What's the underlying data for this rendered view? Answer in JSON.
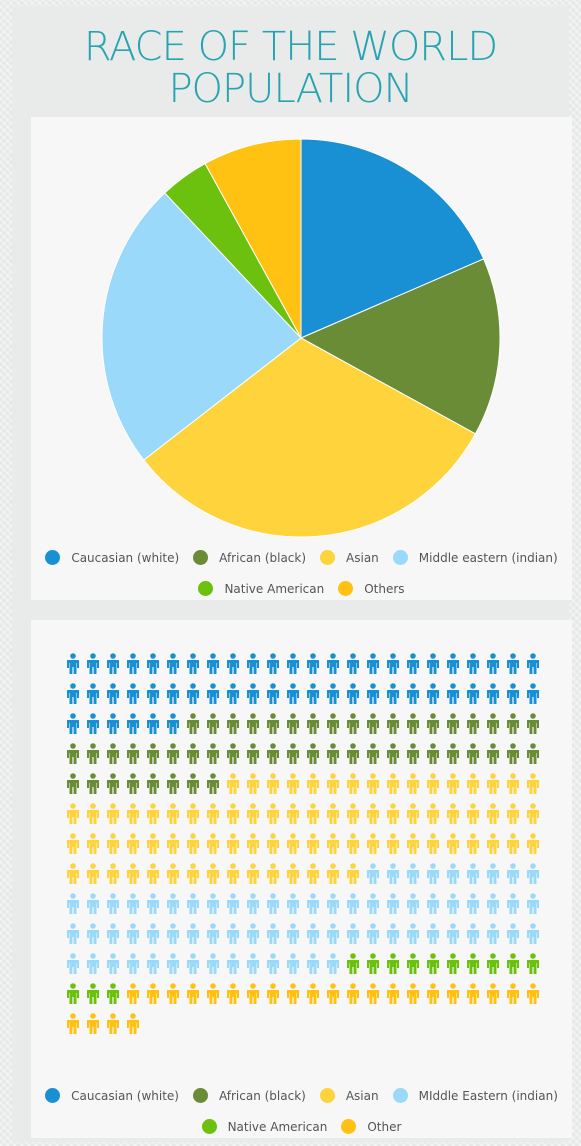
{
  "title": {
    "line1": "RACE OF THE WORLD",
    "line2": "POPULATION"
  },
  "colors": {
    "caucasian": "#1a90d4",
    "african": "#6a8c36",
    "asian": "#fed33c",
    "middle_eastern": "#9bd9fb",
    "native_american": "#6cc10e",
    "others": "#ffc212"
  },
  "chart_data": [
    {
      "type": "pie",
      "slices": [
        {
          "label": "Caucasian (white)",
          "value": 18.5,
          "color": "#1a90d4"
        },
        {
          "label": "African (black)",
          "value": 14.5,
          "color": "#6a8c36"
        },
        {
          "label": "Asian",
          "value": 31.5,
          "color": "#fed33c"
        },
        {
          "label": "Middle eastern (indian)",
          "value": 23.5,
          "color": "#9bd9fb"
        },
        {
          "label": "Native American",
          "value": 4,
          "color": "#6cc10e"
        },
        {
          "label": "Others",
          "value": 8,
          "color": "#ffc212"
        }
      ],
      "legend": [
        [
          "Caucasian (white)",
          "African (black)",
          "Asian",
          "Middle eastern (indian)"
        ],
        [
          "Native American",
          "Others"
        ]
      ]
    },
    {
      "type": "pictogram",
      "rows": 13,
      "columns": 24,
      "groups": [
        {
          "label": "Caucasian (white)",
          "count": 54,
          "color": "#1a90d4"
        },
        {
          "label": "African (black)",
          "count": 50,
          "color": "#6a8c36"
        },
        {
          "label": "Asian",
          "count": 79,
          "color": "#fed33c"
        },
        {
          "label": "MIddle Eastern (indian)",
          "count": 71,
          "color": "#9bd9fb"
        },
        {
          "label": "Native American",
          "count": 13,
          "color": "#6cc10e"
        },
        {
          "label": "Other",
          "count": 25,
          "color": "#ffc212"
        }
      ],
      "legend": [
        [
          "Caucasian (white)",
          "African (black)",
          "Asian",
          "MIddle Eastern (indian)"
        ],
        [
          "Native American",
          "Other"
        ]
      ]
    }
  ]
}
